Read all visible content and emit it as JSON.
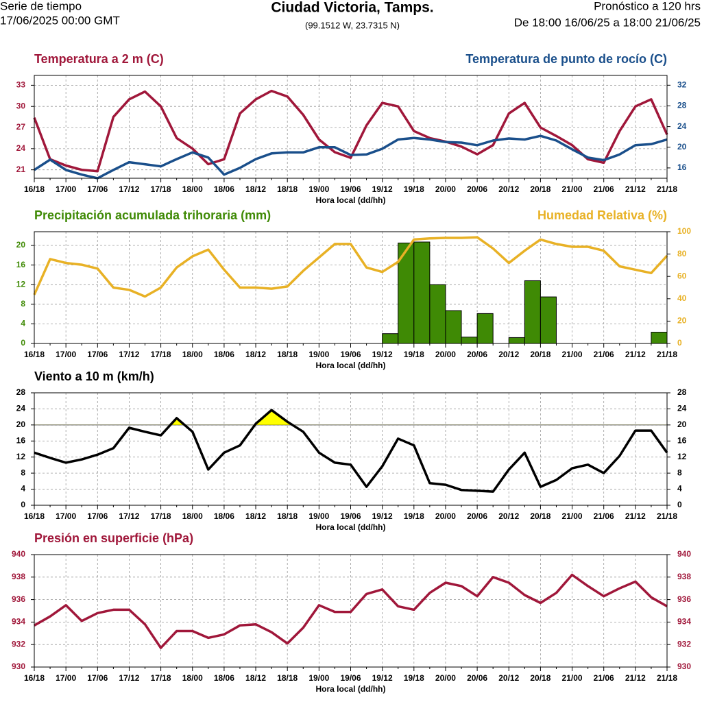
{
  "header": {
    "left_title": "Serie de tiempo",
    "left_subtitle": "17/06/2025 00:00 GMT",
    "title": "Ciudad Victoria, Tamps.",
    "subtitle": "(99.1512 W, 23.7315 N)",
    "right_title": "Pronóstico a 120 hrs",
    "right_subtitle": "De 18:00 16/06/25 a 18:00 21/06/25"
  },
  "chart_data": [
    {
      "type": "line",
      "x_label": "Hora local (dd/hh)",
      "categories": [
        "16/18",
        null,
        "17/00",
        null,
        "17/06",
        null,
        "17/12",
        null,
        "17/18",
        null,
        "18/00",
        null,
        "18/06",
        null,
        "18/12",
        null,
        "18/18",
        null,
        "19/00",
        null,
        "19/06",
        null,
        "19/12",
        null,
        "19/18",
        null,
        "20/00",
        null,
        "20/06",
        null,
        "20/12",
        null,
        "20/18",
        null,
        "21/00",
        null,
        "21/06",
        null,
        "21/12",
        null,
        "21/18"
      ],
      "ylim": [
        19.8,
        34.4
      ],
      "yticks": [
        21,
        24,
        27,
        30,
        33
      ],
      "ytick_color": "#a0173a",
      "y2lim": [
        14,
        33.9
      ],
      "y2ticks": [
        16,
        20,
        24,
        28,
        32
      ],
      "y2tick_color": "#1a4f8b",
      "grid": true,
      "series": [
        {
          "name": "Temperatura a 2 m (C)",
          "color": "#a0173a",
          "axis": "y",
          "values": [
            28.4,
            22.5,
            21.6,
            21.0,
            20.8,
            28.5,
            31.0,
            32.1,
            30,
            25.5,
            24,
            21.8,
            22.5,
            29,
            31,
            32.2,
            31.4,
            28.8,
            25.3,
            23.5,
            22.7,
            27.3,
            30.5,
            30,
            26.5,
            25.5,
            25,
            24.3,
            23.2,
            24.5,
            29,
            30.5,
            27,
            25.8,
            24.5,
            22.5,
            22,
            26.5,
            30,
            31,
            26
          ]
        },
        {
          "name": "Temperatura de punto de rocío (C)",
          "color": "#1a4f8b",
          "axis": "y2",
          "values": [
            15.6,
            17.6,
            15.6,
            14.7,
            14.0,
            15.6,
            17.1,
            16.7,
            16.3,
            17.7,
            19,
            18,
            14.7,
            16,
            17.7,
            18.8,
            19,
            19,
            20,
            20,
            18.5,
            18.6,
            19.7,
            21.5,
            21.8,
            21.5,
            21,
            20.9,
            20.4,
            21.3,
            21.7,
            21.5,
            22.2,
            21.3,
            19.6,
            18,
            17.5,
            18.6,
            20.4,
            20.6,
            21.5
          ]
        }
      ]
    },
    {
      "type": "combo",
      "x_label": "Hora local (dd/hh)",
      "categories": [
        "16/18",
        null,
        "17/00",
        null,
        "17/06",
        null,
        "17/12",
        null,
        "17/18",
        null,
        "18/00",
        null,
        "18/06",
        null,
        "18/12",
        null,
        "18/18",
        null,
        "19/00",
        null,
        "19/06",
        null,
        "19/12",
        null,
        "19/18",
        null,
        "20/00",
        null,
        "20/06",
        null,
        "20/12",
        null,
        "20/18",
        null,
        "21/00",
        null,
        "21/06",
        null,
        "21/12",
        null,
        "21/18"
      ],
      "ylim": [
        0,
        22.8
      ],
      "yticks": [
        0,
        4,
        8,
        12,
        16,
        20
      ],
      "ytick_color": "#3f8a05",
      "y2lim": [
        0,
        100
      ],
      "y2ticks": [
        0,
        20,
        40,
        60,
        80,
        100
      ],
      "y2tick_color": "#e8b125",
      "grid": true,
      "series": [
        {
          "name": "Precipitación acumulada trihoraria (mm)",
          "color": "#3f8a05",
          "axis": "y",
          "type": "bar",
          "values": [
            null,
            0,
            0,
            0,
            0,
            0,
            0,
            0,
            0,
            0,
            0,
            0,
            0,
            0,
            0,
            0,
            0,
            0,
            0,
            0,
            0,
            0,
            0,
            2.0,
            20.5,
            20.7,
            12,
            6.7,
            1.3,
            6.1,
            0,
            1.2,
            12.8,
            9.5,
            0,
            0,
            0,
            0,
            0,
            0,
            2.3
          ]
        },
        {
          "name": "Humedad Relativa (%)",
          "color": "#e8b125",
          "axis": "y2",
          "type": "line",
          "values": [
            43.6,
            75.5,
            72,
            70.5,
            67,
            50,
            48,
            42,
            50,
            68,
            78,
            84,
            66,
            50,
            50,
            49,
            51,
            65,
            77,
            89,
            89,
            68,
            64,
            73,
            93,
            94,
            94.5,
            94.5,
            95,
            85,
            72,
            83,
            93,
            89,
            86.5,
            86.5,
            83,
            69,
            66,
            63,
            78.5
          ]
        }
      ]
    },
    {
      "type": "line",
      "x_label": "Hora local (dd/hh)",
      "categories": [
        "16/18",
        null,
        "17/00",
        null,
        "17/06",
        null,
        "17/12",
        null,
        "17/18",
        null,
        "18/00",
        null,
        "18/06",
        null,
        "18/12",
        null,
        "18/18",
        null,
        "19/00",
        null,
        "19/06",
        null,
        "19/12",
        null,
        "19/18",
        null,
        "20/00",
        null,
        "20/06",
        null,
        "20/12",
        null,
        "20/18",
        null,
        "21/00",
        null,
        "21/06",
        null,
        "21/12",
        null,
        "21/18"
      ],
      "ylim": [
        0,
        28
      ],
      "yticks": [
        0,
        4,
        8,
        12,
        16,
        20,
        24,
        28
      ],
      "ytick_color": "#000000",
      "y2lim": [
        0,
        28
      ],
      "y2ticks": [
        0,
        4,
        8,
        12,
        16,
        20,
        24,
        28
      ],
      "y2tick_color": "#000000",
      "grid": true,
      "threshold": 20,
      "threshold_color": "#ffff00",
      "series": [
        {
          "name": "Viento a 10 m (km/h)",
          "color": "#000000",
          "axis": "y",
          "values": [
            13.1,
            11.8,
            10.6,
            11.4,
            12.6,
            14.2,
            19.3,
            18.3,
            17.4,
            21.7,
            18.3,
            8.9,
            13.1,
            14.9,
            20.3,
            23.7,
            20.8,
            18.3,
            13.1,
            10.6,
            10.1,
            4.6,
            9.7,
            16.6,
            14.9,
            5.5,
            5.1,
            3.8,
            3.6,
            3.4,
            8.9,
            13.1,
            4.6,
            6.3,
            9.2,
            10.1,
            8.0,
            12.3,
            18.6,
            18.6,
            13.1
          ]
        }
      ]
    },
    {
      "type": "line",
      "x_label": "Hora local (dd/hh)",
      "categories": [
        "16/18",
        null,
        "17/00",
        null,
        "17/06",
        null,
        "17/12",
        null,
        "17/18",
        null,
        "18/00",
        null,
        "18/06",
        null,
        "18/12",
        null,
        "18/18",
        null,
        "19/00",
        null,
        "19/06",
        null,
        "19/12",
        null,
        "19/18",
        null,
        "20/00",
        null,
        "20/06",
        null,
        "20/12",
        null,
        "20/18",
        null,
        "21/00",
        null,
        "21/06",
        null,
        "21/12",
        null,
        "21/18"
      ],
      "ylim": [
        930,
        940
      ],
      "yticks": [
        930,
        932,
        934,
        936,
        938,
        940
      ],
      "ytick_color": "#a0173a",
      "y2lim": [
        930,
        940
      ],
      "y2ticks": [
        930,
        932,
        934,
        936,
        938,
        940
      ],
      "y2tick_color": "#a0173a",
      "grid": true,
      "series": [
        {
          "name": "Presión en superficie (hPa)",
          "color": "#a0173a",
          "axis": "y",
          "values": [
            933.7,
            934.5,
            935.5,
            934.1,
            934.8,
            935.1,
            935.1,
            933.8,
            931.7,
            933.2,
            933.2,
            932.6,
            932.9,
            933.7,
            933.8,
            933.1,
            932.1,
            933.5,
            935.5,
            934.9,
            934.9,
            936.5,
            936.9,
            935.4,
            935.1,
            936.6,
            937.5,
            937.2,
            936.3,
            938,
            937.5,
            936.4,
            935.7,
            936.6,
            938.2,
            937.2,
            936.3,
            937,
            937.6,
            936.2,
            935.4
          ]
        }
      ]
    }
  ]
}
